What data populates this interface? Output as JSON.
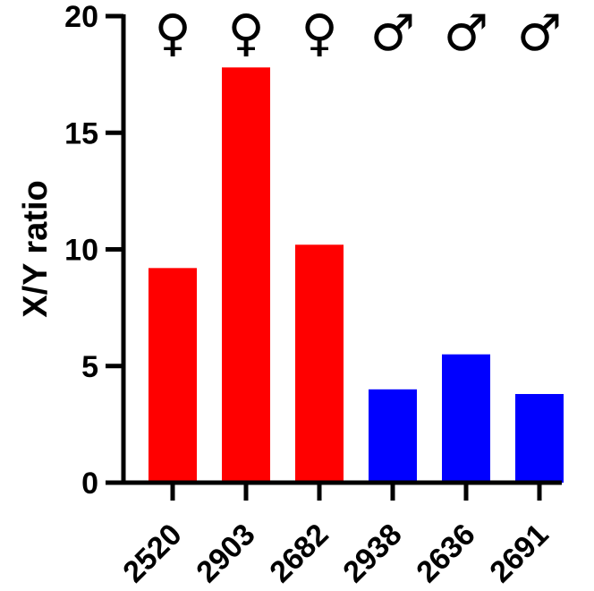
{
  "chart_data": {
    "type": "bar",
    "title": "",
    "xlabel": "",
    "ylabel": "X/Y ratio",
    "ylim": [
      0,
      20
    ],
    "yticks": [
      0,
      5,
      10,
      15,
      20
    ],
    "categories": [
      "2520",
      "2903",
      "2682",
      "2938",
      "2636",
      "2691"
    ],
    "values": [
      9.2,
      17.8,
      10.2,
      4.0,
      5.5,
      3.8
    ],
    "sex_symbols": [
      "♀",
      "♀",
      "♀",
      "♂",
      "♂",
      "♂"
    ],
    "colors": [
      "#ff0000",
      "#ff0000",
      "#ff0000",
      "#0000ff",
      "#0000ff",
      "#0000ff"
    ],
    "grid": false,
    "legend": "none"
  }
}
